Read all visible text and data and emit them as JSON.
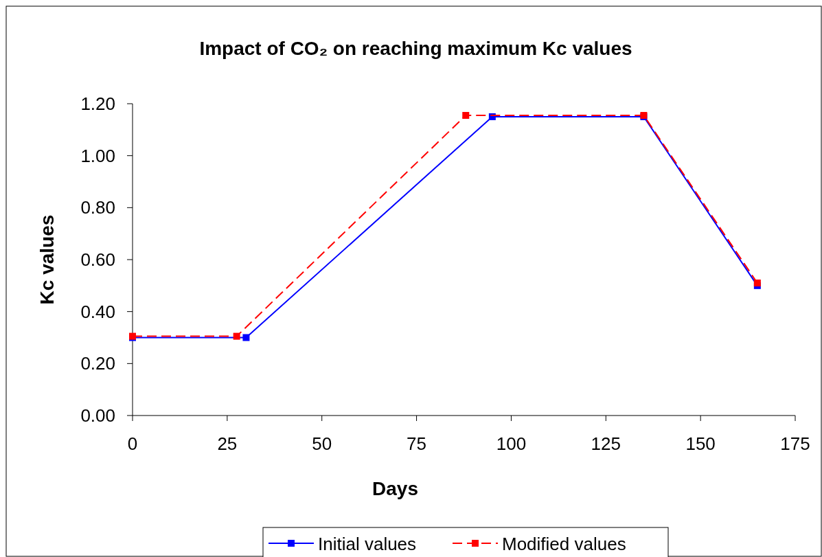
{
  "chart_data": {
    "type": "line",
    "title": "Impact of CO₂ on reaching maximum Kc values",
    "xlabel": "Days",
    "ylabel": "Kc values",
    "xlim": [
      0,
      175
    ],
    "xticks": [
      0,
      25,
      50,
      75,
      100,
      125,
      150,
      175
    ],
    "ylim": [
      0,
      1.2
    ],
    "yticks": [
      {
        "value": 0,
        "label": "0.00"
      },
      {
        "value": 0.2,
        "label": "0.20"
      },
      {
        "value": 0.4,
        "label": "0.40"
      },
      {
        "value": 0.6,
        "label": "0.60"
      },
      {
        "value": 0.8,
        "label": "0.80"
      },
      {
        "value": 1,
        "label": "1.00"
      },
      {
        "value": 1.2,
        "label": "1.20"
      }
    ],
    "grid": false,
    "legend": "bottom",
    "marker": "square",
    "series": [
      {
        "name": "Initial values",
        "color": "#0000ff",
        "line_style": "solid",
        "x": [
          0,
          30,
          95,
          135,
          165
        ],
        "values": [
          0.3,
          0.3,
          1.15,
          1.15,
          0.5
        ]
      },
      {
        "name": "Modified values",
        "color": "#ff0000",
        "line_style": "dashed",
        "x": [
          0,
          27.5,
          88,
          135,
          165
        ],
        "values": [
          0.305,
          0.305,
          1.155,
          1.155,
          0.51
        ]
      }
    ]
  }
}
